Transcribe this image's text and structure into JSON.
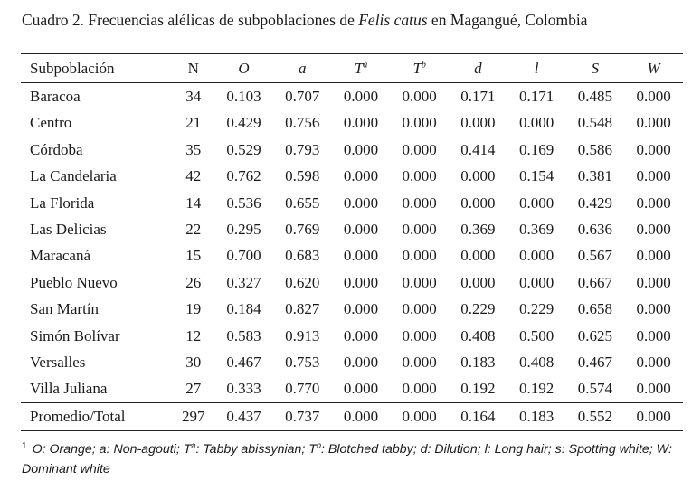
{
  "caption": {
    "prefix": "Cuadro 2.  Frecuencias alélicas de subpoblaciones de ",
    "species": "Felis catus",
    "suffix": " en Magangué, Colombia"
  },
  "table": {
    "headers": [
      {
        "main": "Subpoblación",
        "sup": ""
      },
      {
        "main": "N",
        "sup": ""
      },
      {
        "main": "O",
        "sup": ""
      },
      {
        "main": "a",
        "sup": ""
      },
      {
        "main": "T",
        "sup": "a"
      },
      {
        "main": "T",
        "sup": "b"
      },
      {
        "main": "d",
        "sup": ""
      },
      {
        "main": "l",
        "sup": ""
      },
      {
        "main": "S",
        "sup": ""
      },
      {
        "main": "W",
        "sup": ""
      }
    ],
    "rows": [
      [
        "Baracoa",
        "34",
        "0.103",
        "0.707",
        "0.000",
        "0.000",
        "0.171",
        "0.171",
        "0.485",
        "0.000"
      ],
      [
        "Centro",
        "21",
        "0.429",
        "0.756",
        "0.000",
        "0.000",
        "0.000",
        "0.000",
        "0.548",
        "0.000"
      ],
      [
        "Córdoba",
        "35",
        "0.529",
        "0.793",
        "0.000",
        "0.000",
        "0.414",
        "0.169",
        "0.586",
        "0.000"
      ],
      [
        "La Candelaria",
        "42",
        "0.762",
        "0.598",
        "0.000",
        "0.000",
        "0.000",
        "0.154",
        "0.381",
        "0.000"
      ],
      [
        "La Florida",
        "14",
        "0.536",
        "0.655",
        "0.000",
        "0.000",
        "0.000",
        "0.000",
        "0.429",
        "0.000"
      ],
      [
        "Las Delicias",
        "22",
        "0.295",
        "0.769",
        "0.000",
        "0.000",
        "0.369",
        "0.369",
        "0.636",
        "0.000"
      ],
      [
        "Maracaná",
        "15",
        "0.700",
        "0.683",
        "0.000",
        "0.000",
        "0.000",
        "0.000",
        "0.567",
        "0.000"
      ],
      [
        "Pueblo Nuevo",
        "26",
        "0.327",
        "0.620",
        "0.000",
        "0.000",
        "0.000",
        "0.000",
        "0.667",
        "0.000"
      ],
      [
        "San Martín",
        "19",
        "0.184",
        "0.827",
        "0.000",
        "0.000",
        "0.229",
        "0.229",
        "0.658",
        "0.000"
      ],
      [
        "Simón Bolívar",
        "12",
        "0.583",
        "0.913",
        "0.000",
        "0.000",
        "0.408",
        "0.500",
        "0.625",
        "0.000"
      ],
      [
        "Versalles",
        "30",
        "0.467",
        "0.753",
        "0.000",
        "0.000",
        "0.183",
        "0.408",
        "0.467",
        "0.000"
      ],
      [
        "Villa Juliana",
        "27",
        "0.333",
        "0.770",
        "0.000",
        "0.000",
        "0.192",
        "0.192",
        "0.574",
        "0.000"
      ]
    ],
    "total": [
      "Promedio/Total",
      "297",
      "0.437",
      "0.737",
      "0.000",
      "0.000",
      "0.164",
      "0.183",
      "0.552",
      "0.000"
    ]
  },
  "footnote": {
    "marker": "1",
    "part1": "O: Orange; a: Non-agouti; T",
    "sup1": "a",
    "part2": ": Tabby abissynian; T",
    "sup2": "b",
    "part3": ": Blotched tabby; d: Dilution; l: Long hair; s: Spotting white; W: Dominant white"
  }
}
